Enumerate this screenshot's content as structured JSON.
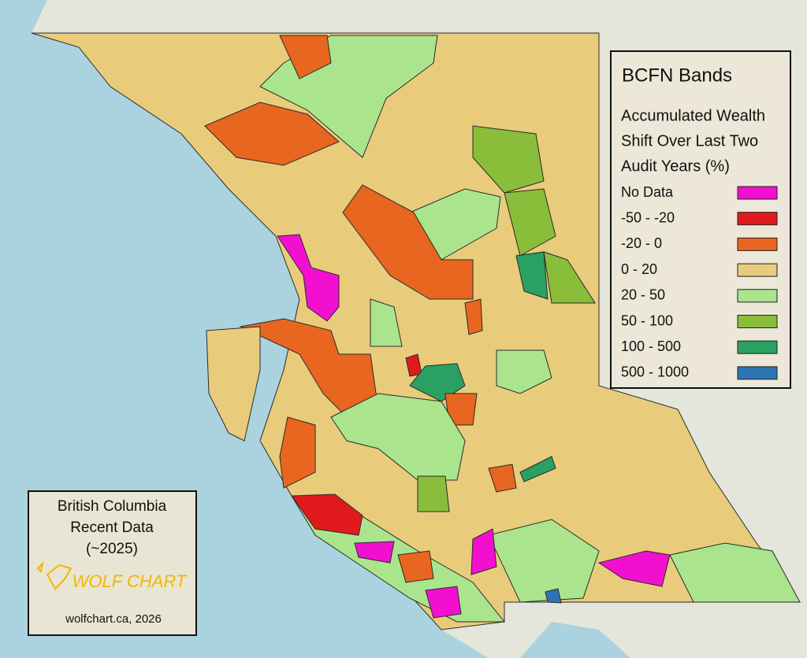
{
  "legend": {
    "title": "BCFN Bands",
    "subtitle": [
      "Accumulated Wealth",
      "Shift Over Last Two",
      "Audit Years (%)"
    ],
    "items": [
      {
        "label": "No Data",
        "color": "#f20fd0"
      },
      {
        "label": "-50 - -20",
        "color": "#e01a1c"
      },
      {
        "label": "-20 - 0",
        "color": "#e8661f"
      },
      {
        "label": "0 - 20",
        "color": "#e8cc7c"
      },
      {
        "label": "20 - 50",
        "color": "#aae58e"
      },
      {
        "label": "50 - 100",
        "color": "#8abd3a"
      },
      {
        "label": "100 - 500",
        "color": "#2aa062"
      },
      {
        "label": "500 - 1000",
        "color": "#2c74b4"
      }
    ]
  },
  "info_box": {
    "lines": [
      "British Columbia",
      "Recent Data",
      "(~2025)"
    ],
    "logo": "WOLF CHART",
    "credit": "wolfchart.ca, 2026"
  }
}
